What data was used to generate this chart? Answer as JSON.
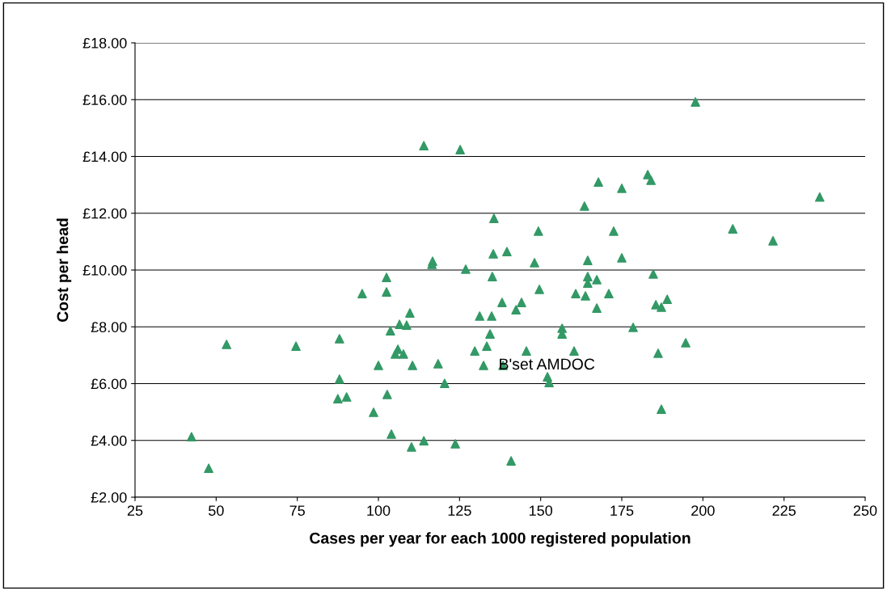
{
  "chart_data": {
    "type": "scatter",
    "xlabel": "Cases per year for each 1000 registered population",
    "ylabel": "Cost per head",
    "x": [
      42.4,
      47.7,
      53.2,
      74.6,
      88.0,
      88.0,
      87.5,
      90.2,
      95.0,
      98.5,
      100.0,
      102.5,
      102.5,
      102.7,
      104.0,
      103.7,
      105.2,
      106.0,
      106.5,
      107.7,
      108.7,
      109.7,
      110.2,
      110.5,
      114.0,
      114.0,
      116.5,
      116.7,
      118.4,
      120.4,
      123.7,
      125.2,
      126.9,
      129.7,
      131.2,
      132.4,
      133.4,
      134.4,
      134.9,
      135.1,
      135.6,
      135.4,
      138.4,
      138.1,
      139.6,
      140.9,
      142.4,
      144.1,
      145.6,
      148.1,
      149.3,
      149.6,
      152.1,
      152.6,
      156.6,
      156.6,
      160.3,
      160.8,
      163.8,
      163.5,
      164.5,
      164.5,
      164.5,
      167.3,
      167.3,
      167.8,
      171.0,
      172.5,
      175.0,
      175.0,
      178.5,
      183.0,
      184.0,
      184.7,
      185.5,
      186.2,
      187.2,
      187.2,
      189.0,
      194.7,
      197.7,
      209.2,
      221.6,
      236.0
    ],
    "series": [
      {
        "color": "#339966",
        "values": [
          4.13,
          3.02,
          7.38,
          7.32,
          7.58,
          6.16,
          5.47,
          5.53,
          9.17,
          4.99,
          6.64,
          9.74,
          9.23,
          5.62,
          4.22,
          7.86,
          7.04,
          7.21,
          8.09,
          7.04,
          8.06,
          8.49,
          3.77,
          6.64,
          3.99,
          14.38,
          10.2,
          10.31,
          6.7,
          6.01,
          3.88,
          14.24,
          10.03,
          7.15,
          8.38,
          6.64,
          7.32,
          7.75,
          8.38,
          9.77,
          11.82,
          10.57,
          6.64,
          8.86,
          10.65,
          3.28,
          8.6,
          8.86,
          7.15,
          10.26,
          11.37,
          9.32,
          6.24,
          6.04,
          7.95,
          7.75,
          7.15,
          9.17,
          9.09,
          12.25,
          9.54,
          9.77,
          10.34,
          9.66,
          8.66,
          13.1,
          9.17,
          11.37,
          10.43,
          12.88,
          7.98,
          13.36,
          13.16,
          9.86,
          8.78,
          7.07,
          8.69,
          5.1,
          8.97,
          7.44,
          15.92,
          11.45,
          11.03,
          12.57
        ]
      }
    ],
    "marker": "triangle",
    "grid": "y",
    "xlim": [
      25,
      250
    ],
    "xticks": [
      25,
      50,
      75,
      100,
      125,
      150,
      175,
      200,
      225,
      250
    ],
    "ylim": [
      2,
      18
    ],
    "yticks": [
      {
        "value": 2,
        "label": "£2.00"
      },
      {
        "value": 4,
        "label": "£4.00"
      },
      {
        "value": 6,
        "label": "£6.00"
      },
      {
        "value": 8,
        "label": "£8.00"
      },
      {
        "value": 10,
        "label": "£10.00"
      },
      {
        "value": 12,
        "label": "£12.00"
      },
      {
        "value": 14,
        "label": "£14.00"
      },
      {
        "value": 16,
        "label": "£16.00"
      },
      {
        "value": 18,
        "label": "£18.00"
      }
    ],
    "annotations": [
      {
        "text": "B'set AMDOC",
        "x": 138.4,
        "y": 6.64
      }
    ]
  }
}
